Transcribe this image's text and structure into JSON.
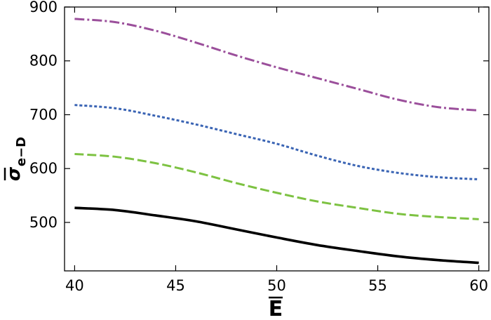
{
  "chart_data": {
    "type": "line",
    "title": "",
    "xlabel": "E",
    "ylabel": "σ",
    "ylabel_subscript": "e−D",
    "xlim": [
      39.5,
      60.5
    ],
    "ylim": [
      410,
      900
    ],
    "x_ticks": [
      40,
      45,
      50,
      55,
      60
    ],
    "y_ticks": [
      500,
      600,
      700,
      800,
      900
    ],
    "x_tick_labels": [
      "40",
      "45",
      "50",
      "55",
      "60"
    ],
    "y_tick_labels": [
      "500",
      "600",
      "700",
      "800",
      "900"
    ],
    "grid": false,
    "legend": "none",
    "x": [
      40,
      42,
      44,
      46,
      48,
      50,
      52,
      54,
      56,
      58,
      60
    ],
    "series": [
      {
        "style": "solid",
        "color": "#000000",
        "values": [
          527,
          523,
          513,
          502,
          487,
          472,
          458,
          447,
          437,
          430,
          425
        ]
      },
      {
        "style": "dashed",
        "color": "#7dc242",
        "values": [
          627,
          622,
          610,
          593,
          573,
          555,
          539,
          527,
          516,
          510,
          506
        ]
      },
      {
        "style": "dotted",
        "color": "#3a64b4",
        "values": [
          718,
          712,
          698,
          682,
          664,
          646,
          624,
          605,
          592,
          584,
          580
        ]
      },
      {
        "style": "dash-dot",
        "color": "#9b4f9b",
        "values": [
          878,
          872,
          856,
          834,
          810,
          788,
          768,
          748,
          728,
          714,
          708
        ]
      }
    ]
  }
}
